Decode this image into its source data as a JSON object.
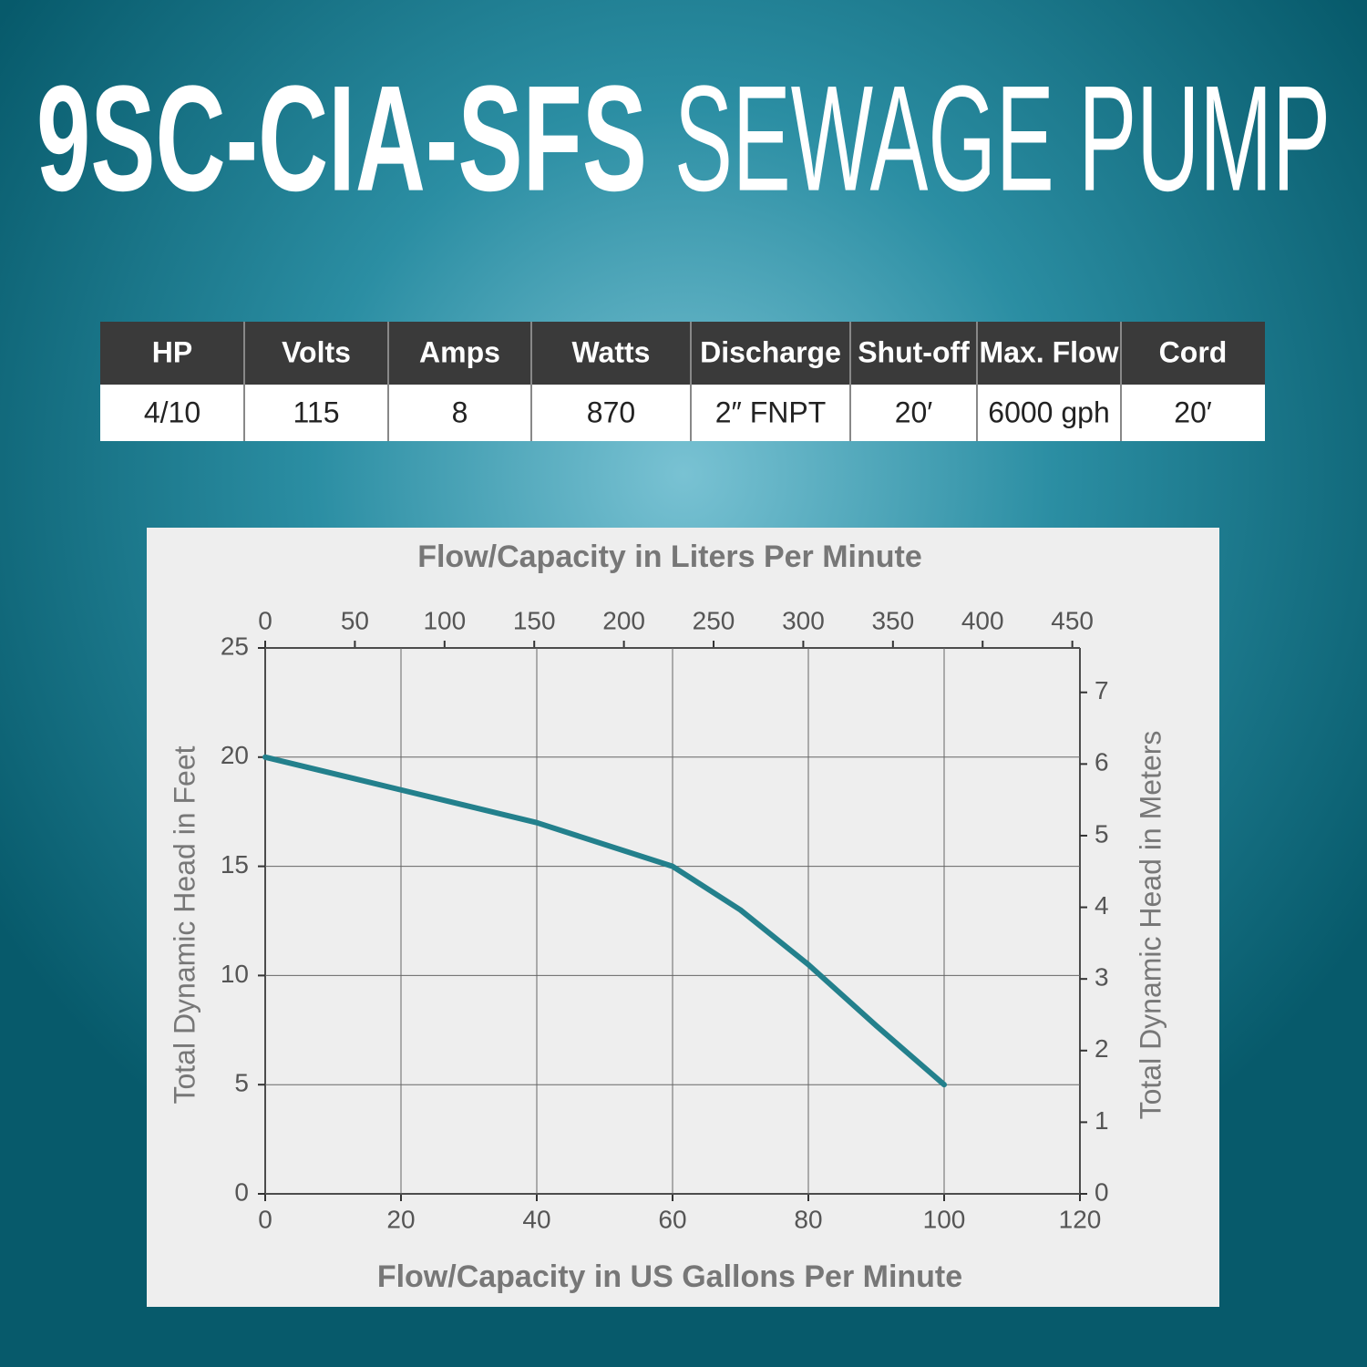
{
  "header": {
    "title_bold": "9SC-CIA-SFS",
    "title_light": "SEWAGE PUMP"
  },
  "table": {
    "header": [
      "HP",
      "Volts",
      "Amps",
      "Watts",
      "Discharge",
      "Shut-off",
      "Max. Flow",
      "Cord"
    ],
    "rows": [
      [
        "4/10",
        "115",
        "8",
        "870",
        "2″ FNPT",
        "20′",
        "6000 gph",
        "20′"
      ]
    ]
  },
  "chart_data": {
    "type": "line",
    "x_label": "Flow/Capacity in US Gallons Per Minute",
    "x2_label": "Flow/Capacity in Liters Per Minute",
    "y_label": "Total Dynamic Head in Feet",
    "y2_label": "Total Dynamic Head in Meters",
    "x": [
      0,
      20,
      40,
      60,
      70,
      80,
      90,
      100
    ],
    "values": [
      20,
      18.5,
      17,
      15,
      13,
      10.5,
      7.7,
      5
    ],
    "color": "#23808c",
    "xlim": [
      0,
      120
    ],
    "xticks": [
      0,
      20,
      40,
      60,
      80,
      100,
      120
    ],
    "x2lim": [
      0,
      454.25
    ],
    "x2ticks": [
      0,
      50,
      100,
      150,
      200,
      250,
      300,
      350,
      400,
      450
    ],
    "ylim": [
      0,
      25
    ],
    "yticks": [
      0,
      5,
      10,
      15,
      20,
      25
    ],
    "y2lim": [
      0,
      7.62
    ],
    "y2ticks": [
      0,
      1,
      2,
      3,
      4,
      5,
      6,
      7
    ],
    "grid": true
  }
}
